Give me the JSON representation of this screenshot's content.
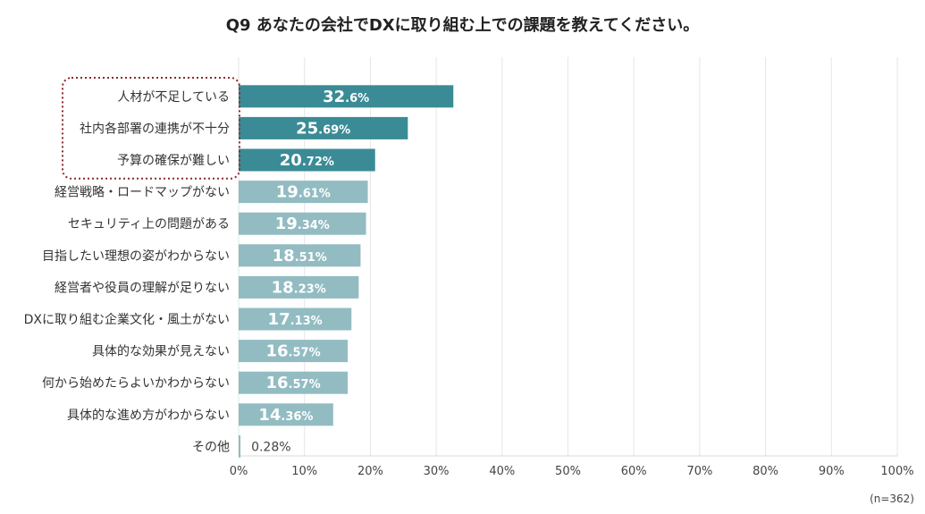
{
  "title": "Q9 あなたの会社でDXに取り組む上での課題を教えてください。",
  "note": "(n=362)",
  "colors": {
    "highlight": "#3a8b95",
    "normal": "#92bcc2",
    "grid": "#e6e6e6",
    "dotted_box": "#8b2a2a"
  },
  "chart_data": {
    "type": "bar",
    "orientation": "horizontal",
    "title": "Q9 あなたの会社でDXに取り組む上での課題を教えてください。",
    "categories": [
      "人材が不足している",
      "社内各部署の連携が不十分",
      "予算の確保が難しい",
      "経営戦略・ロードマップがない",
      "セキュリティ上の問題がある",
      "目指したい理想の姿がわからない",
      "経営者や役員の理解が足りない",
      "DXに取り組む企業文化・風土がない",
      "具体的な効果が見えない",
      "何から始めたらよいかわからない",
      "具体的な進め方がわからない",
      "その他"
    ],
    "values": [
      32.6,
      25.69,
      20.72,
      19.61,
      19.34,
      18.51,
      18.23,
      17.13,
      16.57,
      16.57,
      14.36,
      0.28
    ],
    "value_labels": [
      "32.6%",
      "25.69%",
      "20.72%",
      "19.61%",
      "19.34%",
      "18.51%",
      "18.23%",
      "17.13%",
      "16.57%",
      "16.57%",
      "14.36%",
      "0.28%"
    ],
    "highlighted": [
      true,
      true,
      true,
      false,
      false,
      false,
      false,
      false,
      false,
      false,
      false,
      false
    ],
    "xlim": [
      0,
      100
    ],
    "xticks": [
      "0%",
      "10%",
      "20%",
      "30%",
      "40%",
      "50%",
      "60%",
      "70%",
      "80%",
      "90%",
      "100%"
    ],
    "grid": true
  }
}
